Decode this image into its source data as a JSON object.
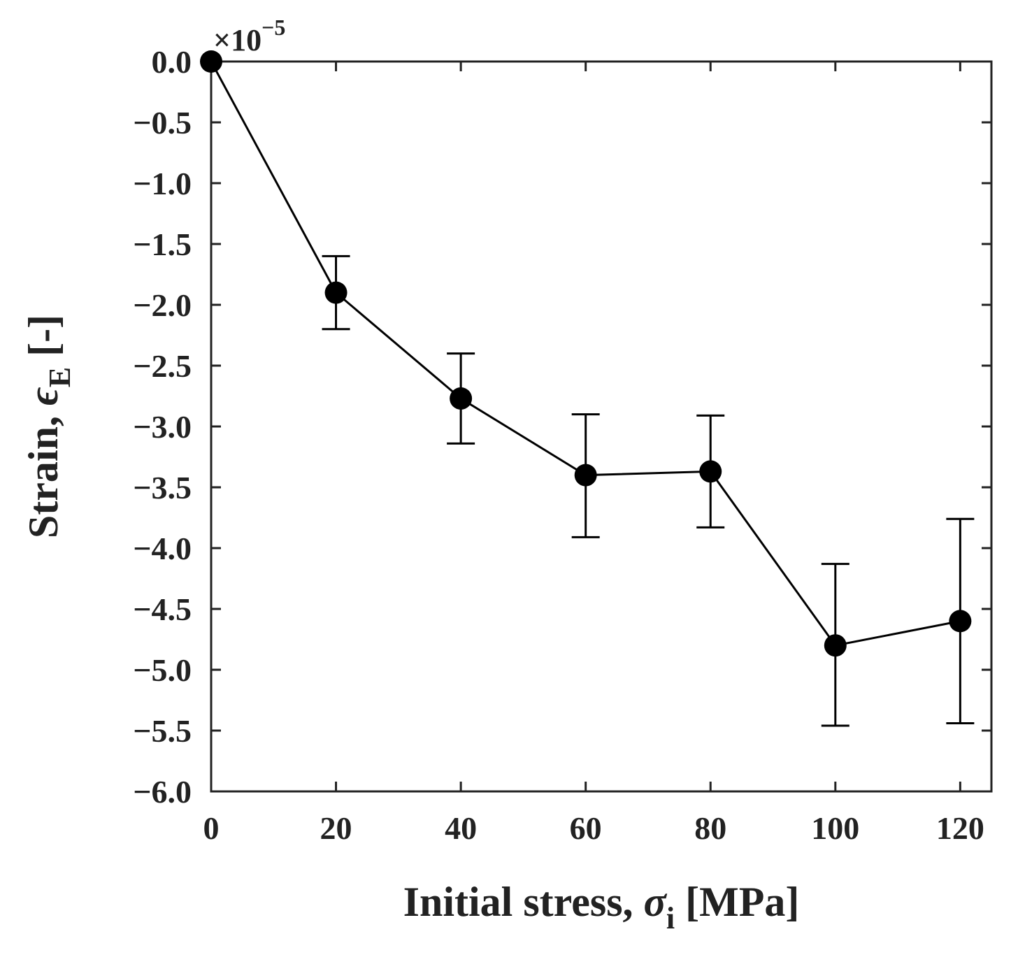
{
  "chart_data": {
    "type": "line",
    "title": "",
    "xlabel": "Initial stress,",
    "xlabel_symbol": "σ",
    "xlabel_subscript": "i",
    "xlabel_unit": "[MPa]",
    "ylabel": "Strain,",
    "ylabel_symbol": "ϵ",
    "ylabel_subscript": "E",
    "ylabel_unit": "[-]",
    "exponent_label": {
      "prefix": "×10",
      "power": "−5"
    },
    "xlim": [
      0,
      125
    ],
    "ylim": [
      -6.0,
      0.0
    ],
    "x_ticks": [
      0,
      20,
      40,
      60,
      80,
      100,
      120
    ],
    "x_tick_labels": [
      "0",
      "20",
      "40",
      "60",
      "80",
      "100",
      "120"
    ],
    "y_ticks": [
      0.0,
      -0.5,
      -1.0,
      -1.5,
      -2.0,
      -2.5,
      -3.0,
      -3.5,
      -4.0,
      -4.5,
      -5.0,
      -5.5,
      -6.0
    ],
    "y_tick_labels": [
      "0.0",
      "−0.5",
      "−1.0",
      "−1.5",
      "−2.0",
      "−2.5",
      "−3.0",
      "−3.5",
      "−4.0",
      "−4.5",
      "−5.0",
      "−5.5",
      "−6.0"
    ],
    "grid": false,
    "series": [
      {
        "name": "strain",
        "color": "#000000",
        "x": [
          0,
          20,
          40,
          60,
          80,
          100,
          120
        ],
        "y": [
          0.0,
          -1.9,
          -2.77,
          -3.4,
          -3.37,
          -4.8,
          -4.6
        ],
        "error_upper": [
          null,
          -1.6,
          -2.4,
          -2.9,
          -2.91,
          -4.13,
          -3.76
        ],
        "error_lower": [
          null,
          -2.2,
          -3.14,
          -3.91,
          -3.83,
          -5.46,
          -5.44
        ]
      }
    ]
  }
}
